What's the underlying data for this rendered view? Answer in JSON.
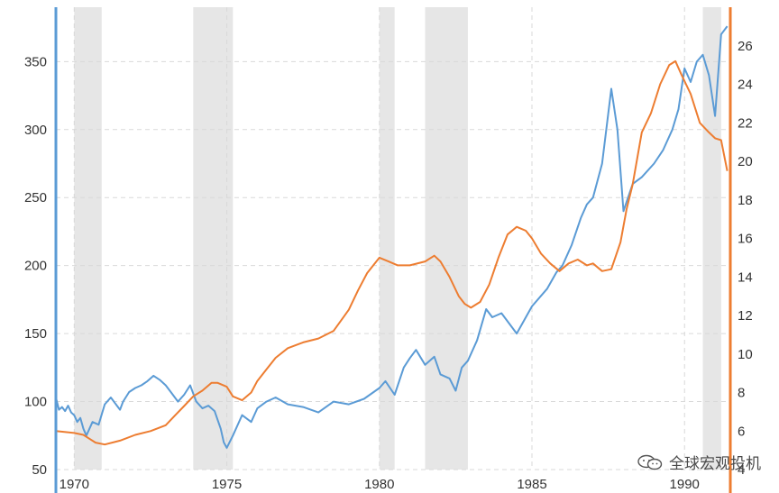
{
  "chart_data": {
    "type": "line",
    "title": "",
    "xlabel": "",
    "ylabel_left": "",
    "ylabel_right": "",
    "xlim": [
      1969.4,
      1991.5
    ],
    "left_axis": {
      "ylim": [
        50,
        390
      ],
      "ticks": [
        "50",
        "100",
        "150",
        "200",
        "250",
        "300",
        "350"
      ],
      "color": "#5b9bd5"
    },
    "right_axis": {
      "ylim": [
        4,
        28
      ],
      "ticks": [
        "4",
        "6",
        "8",
        "10",
        "12",
        "14",
        "16",
        "18",
        "20",
        "22",
        "24",
        "26"
      ],
      "color": "#ed7d31"
    },
    "x_ticks": [
      {
        "value": 1970,
        "label": "1970"
      },
      {
        "value": 1975,
        "label": "1975"
      },
      {
        "value": 1980,
        "label": "1980"
      },
      {
        "value": 1985,
        "label": "1985"
      },
      {
        "value": 1990,
        "label": "1990"
      }
    ],
    "recessions": [
      {
        "start": 1970.0,
        "end": 1970.9
      },
      {
        "start": 1973.9,
        "end": 1975.2
      },
      {
        "start": 1980.0,
        "end": 1980.5
      },
      {
        "start": 1981.5,
        "end": 1982.9
      },
      {
        "start": 1990.6,
        "end": 1991.2
      }
    ],
    "series": [
      {
        "name": "blue-series",
        "axis": "left",
        "color": "#5b9bd5",
        "x": [
          1969.4,
          1969.5,
          1969.6,
          1969.7,
          1969.8,
          1969.9,
          1970.0,
          1970.1,
          1970.2,
          1970.3,
          1970.4,
          1970.5,
          1970.6,
          1970.8,
          1971.0,
          1971.2,
          1971.4,
          1971.5,
          1971.6,
          1971.8,
          1972.0,
          1972.2,
          1972.4,
          1972.6,
          1972.8,
          1973.0,
          1973.2,
          1973.4,
          1973.6,
          1973.8,
          1974.0,
          1974.2,
          1974.4,
          1974.6,
          1974.8,
          1974.9,
          1975.0,
          1975.2,
          1975.5,
          1975.8,
          1976.0,
          1976.3,
          1976.6,
          1977.0,
          1977.5,
          1978.0,
          1978.5,
          1979.0,
          1979.5,
          1980.0,
          1980.2,
          1980.5,
          1980.8,
          1981.0,
          1981.2,
          1981.5,
          1981.8,
          1982.0,
          1982.3,
          1982.5,
          1982.7,
          1982.9,
          1983.2,
          1983.5,
          1983.7,
          1984.0,
          1984.5,
          1985.0,
          1985.5,
          1985.8,
          1986.0,
          1986.3,
          1986.6,
          1986.8,
          1987.0,
          1987.3,
          1987.6,
          1987.8,
          1988.0,
          1988.3,
          1988.6,
          1989.0,
          1989.3,
          1989.6,
          1989.8,
          1990.0,
          1990.2,
          1990.4,
          1990.6,
          1990.8,
          1991.0,
          1991.2,
          1991.4
        ],
        "values": [
          103,
          94,
          96,
          93,
          97,
          92,
          90,
          85,
          88,
          80,
          75,
          80,
          85,
          83,
          98,
          103,
          97,
          94,
          100,
          107,
          110,
          112,
          115,
          119,
          116,
          112,
          106,
          100,
          105,
          112,
          100,
          95,
          97,
          93,
          80,
          70,
          66,
          75,
          90,
          85,
          95,
          100,
          103,
          98,
          96,
          92,
          100,
          98,
          102,
          110,
          115,
          105,
          125,
          132,
          138,
          127,
          133,
          120,
          117,
          108,
          125,
          130,
          145,
          168,
          162,
          165,
          150,
          170,
          183,
          195,
          200,
          215,
          235,
          245,
          250,
          275,
          330,
          300,
          240,
          260,
          265,
          275,
          285,
          300,
          315,
          345,
          335,
          350,
          355,
          340,
          310,
          370,
          376
        ]
      },
      {
        "name": "orange-series",
        "axis": "right",
        "color": "#ed7d31",
        "x": [
          1969.4,
          1970.0,
          1970.3,
          1970.5,
          1970.7,
          1971.0,
          1971.5,
          1972.0,
          1972.5,
          1973.0,
          1973.3,
          1973.6,
          1973.9,
          1974.2,
          1974.5,
          1974.7,
          1975.0,
          1975.2,
          1975.5,
          1975.8,
          1976.0,
          1976.3,
          1976.6,
          1977.0,
          1977.5,
          1978.0,
          1978.5,
          1979.0,
          1979.3,
          1979.6,
          1979.9,
          1980.0,
          1980.3,
          1980.6,
          1981.0,
          1981.5,
          1981.8,
          1982.0,
          1982.3,
          1982.6,
          1982.8,
          1983.0,
          1983.3,
          1983.6,
          1983.9,
          1984.2,
          1984.5,
          1984.8,
          1985.0,
          1985.3,
          1985.6,
          1985.9,
          1986.2,
          1986.5,
          1986.8,
          1987.0,
          1987.3,
          1987.6,
          1987.9,
          1988.1,
          1988.3,
          1988.6,
          1988.9,
          1989.2,
          1989.5,
          1989.7,
          1989.9,
          1990.2,
          1990.5,
          1990.8,
          1991.0,
          1991.2,
          1991.4
        ],
        "values": [
          6.0,
          5.9,
          5.8,
          5.6,
          5.4,
          5.3,
          5.5,
          5.8,
          6.0,
          6.3,
          6.8,
          7.3,
          7.8,
          8.1,
          8.5,
          8.5,
          8.3,
          7.8,
          7.6,
          8.0,
          8.6,
          9.2,
          9.8,
          10.3,
          10.6,
          10.8,
          11.2,
          12.3,
          13.3,
          14.2,
          14.8,
          15.0,
          14.8,
          14.6,
          14.6,
          14.8,
          15.1,
          14.8,
          14.0,
          13.0,
          12.6,
          12.4,
          12.7,
          13.6,
          15.0,
          16.2,
          16.6,
          16.4,
          16.0,
          15.2,
          14.7,
          14.3,
          14.7,
          14.9,
          14.6,
          14.7,
          14.3,
          14.4,
          15.8,
          17.5,
          18.8,
          21.5,
          22.5,
          24.0,
          25.0,
          25.2,
          24.5,
          23.5,
          22.0,
          21.5,
          21.2,
          21.1,
          19.5
        ]
      }
    ]
  },
  "watermark": {
    "icon": "wechat-icon",
    "text": "全球宏观投机"
  }
}
